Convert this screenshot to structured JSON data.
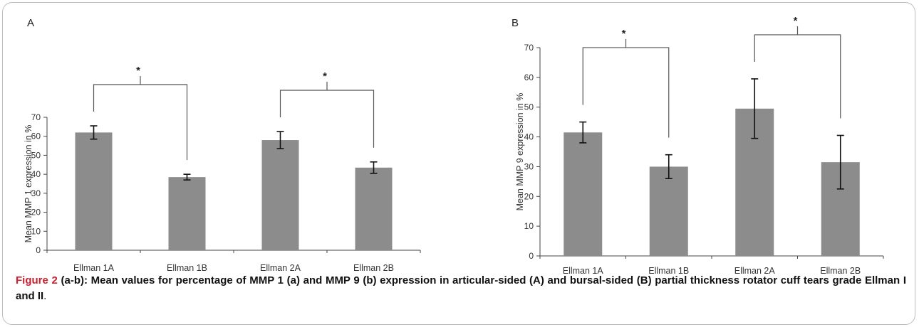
{
  "chart_data": [
    {
      "type": "bar",
      "panel": "A",
      "categories": [
        "Ellman 1A",
        "Ellman 1B",
        "Ellman 2A",
        "Ellman 2B"
      ],
      "values": [
        62,
        38.5,
        58,
        43.5
      ],
      "error": [
        3.5,
        1.5,
        4.5,
        3
      ],
      "ylabel": "Mean MMP 1 expression in %",
      "ylim": [
        0,
        70
      ],
      "yticks": [
        0,
        10,
        20,
        30,
        40,
        50,
        60,
        70
      ],
      "significance": [
        {
          "from": 0,
          "to": 1,
          "label": "*"
        },
        {
          "from": 2,
          "to": 3,
          "label": "*"
        }
      ],
      "bar_color": "#8c8c8c",
      "grid": false
    },
    {
      "type": "bar",
      "panel": "B",
      "categories": [
        "Ellman 1A",
        "Ellman 1B",
        "Ellman 2A",
        "Ellman 2B"
      ],
      "values": [
        41.5,
        30,
        49.5,
        31.5
      ],
      "error": [
        3.5,
        4,
        10,
        9
      ],
      "ylabel": "Mean MMP 9 expression in %",
      "ylim": [
        0,
        70
      ],
      "yticks": [
        0,
        10,
        20,
        30,
        40,
        50,
        60,
        70
      ],
      "significance": [
        {
          "from": 0,
          "to": 1,
          "label": "*"
        },
        {
          "from": 2,
          "to": 3,
          "label": "*"
        }
      ],
      "bar_color": "#8c8c8c",
      "grid": false
    }
  ],
  "caption": {
    "label": "Figure 2",
    "text": " (a-b): Mean values for percentage of MMP 1 (a) and MMP 9 (b) expression in articular-sided (A) and bursal-sided (B) partial thickness rotator cuff tears grade Ellman I and II",
    "end": "."
  }
}
